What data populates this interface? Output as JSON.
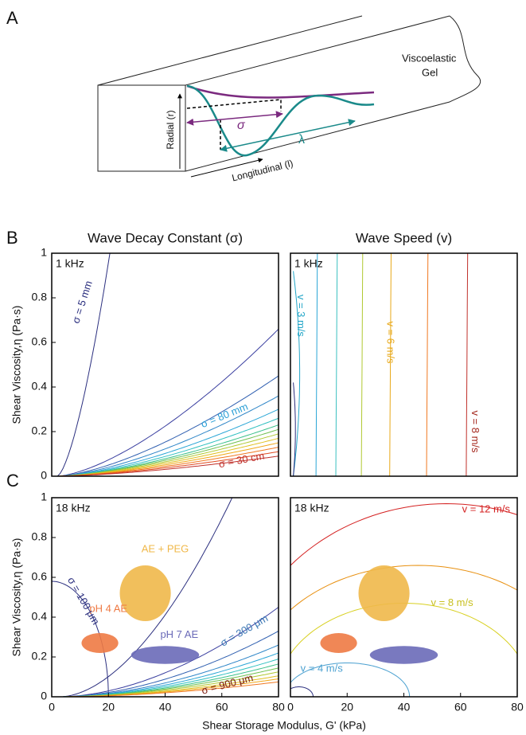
{
  "panel_a": {
    "label": "A",
    "gel_line1": "Viscoelastic",
    "gel_line2": "Gel",
    "radial": "Radial (r)",
    "longitudinal": "Longitudinal (l)",
    "sigma": "σ",
    "lambda": "λ"
  },
  "panel_labels": [
    "B",
    "C"
  ],
  "axis_labels": {
    "y": "Shear Viscosity,η (Pa·s)",
    "x": "Shear Storage Modulus, G' (kPa)"
  },
  "chart_data": [
    {
      "type": "contour",
      "title": "Wave Decay Constant (σ)",
      "frequency": "1 kHz",
      "xlim": [
        0,
        80
      ],
      "ylim": [
        0,
        1
      ],
      "yticks": [
        0,
        0.2,
        0.4,
        0.6,
        0.8,
        1
      ],
      "annotations": [
        {
          "text": "σ = 5 mm",
          "color": "#2b2f7f"
        },
        {
          "text": "σ = 80 mm",
          "color": "#2a9fd6"
        },
        {
          "text": "σ = 30 cm",
          "color": "#c0302a"
        }
      ]
    },
    {
      "type": "contour",
      "title": "Wave Speed (v)",
      "frequency": "1 kHz",
      "xlim": [
        0,
        80
      ],
      "ylim": [
        0,
        1
      ],
      "annotations": [
        {
          "text": "v = 3 m/s",
          "color": "#23a6c8"
        },
        {
          "text": "v = 6 m/s",
          "color": "#e8a818"
        },
        {
          "text": "v = 8 m/s",
          "color": "#a5281e"
        }
      ]
    },
    {
      "type": "contour",
      "frequency": "18 kHz",
      "xlim": [
        0,
        80
      ],
      "ylim": [
        0,
        1
      ],
      "xticks": [
        0,
        20,
        40,
        60,
        80
      ],
      "yticks": [
        0,
        0.2,
        0.4,
        0.6,
        0.8,
        1
      ],
      "annotations": [
        {
          "text": "σ = 100 μm",
          "color": "#2b2f7f"
        },
        {
          "text": "σ = 300 μm",
          "color": "#3a78b5"
        },
        {
          "text": "σ = 900 μm",
          "color": "#7a1a10"
        }
      ],
      "regions": [
        {
          "name": "AE + PEG",
          "x": 33,
          "y": 0.52,
          "rx": 9,
          "ry": 0.14,
          "color": "#f0b84a"
        },
        {
          "name": "pH 4 AE",
          "x": 17,
          "y": 0.27,
          "rx": 6.5,
          "ry": 0.05,
          "color": "#ee7a44"
        },
        {
          "name": "pH 7 AE",
          "x": 40,
          "y": 0.21,
          "rx": 12,
          "ry": 0.045,
          "color": "#6a6ab8"
        }
      ]
    },
    {
      "type": "contour",
      "frequency": "18 kHz",
      "xlim": [
        0,
        80
      ],
      "ylim": [
        0,
        1
      ],
      "xticks": [
        0,
        20,
        40,
        60,
        80
      ],
      "annotations": [
        {
          "text": "v = 12 m/s",
          "color": "#d42020"
        },
        {
          "text": "v = 8 m/s",
          "color": "#c8c020"
        },
        {
          "text": "v = 4 m/s",
          "color": "#4aa0d0"
        }
      ],
      "regions": [
        {
          "x": 33,
          "y": 0.52,
          "rx": 9,
          "ry": 0.14,
          "color": "#f0b84a"
        },
        {
          "x": 17,
          "y": 0.27,
          "rx": 6.5,
          "ry": 0.05,
          "color": "#ee7a44"
        },
        {
          "x": 40,
          "y": 0.21,
          "rx": 12,
          "ry": 0.045,
          "color": "#6a6ab8"
        }
      ]
    }
  ]
}
